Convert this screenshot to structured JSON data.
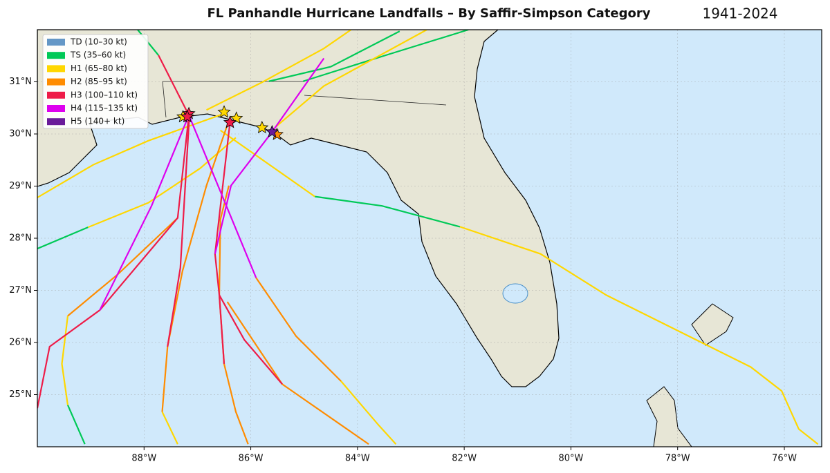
{
  "chart_data": {
    "type": "map",
    "title": "FL Panhandle Hurricane Landfalls – By Saffir-Simpson Category",
    "subtitle": "1941-2024",
    "xlim": [
      -90,
      -75.3
    ],
    "ylim": [
      24,
      32
    ],
    "xticks": [
      {
        "value": -88,
        "label": "88°W"
      },
      {
        "value": -86,
        "label": "86°W"
      },
      {
        "value": -84,
        "label": "84°W"
      },
      {
        "value": -82,
        "label": "82°W"
      },
      {
        "value": -80,
        "label": "80°W"
      },
      {
        "value": -78,
        "label": "78°W"
      },
      {
        "value": -76,
        "label": "76°W"
      }
    ],
    "yticks": [
      {
        "value": 25,
        "label": "25°N"
      },
      {
        "value": 26,
        "label": "26°N"
      },
      {
        "value": 27,
        "label": "27°N"
      },
      {
        "value": 28,
        "label": "28°N"
      },
      {
        "value": 29,
        "label": "29°N"
      },
      {
        "value": 30,
        "label": "30°N"
      },
      {
        "value": 31,
        "label": "31°N"
      }
    ],
    "grid": true,
    "legend": "upper left",
    "series": [
      {
        "name": "TD (10–30 kt)",
        "color": "#6497c6",
        "tracks": [],
        "landfalls": {
          "x": [],
          "y": []
        }
      },
      {
        "name": "TS (35–60 kt)",
        "color": "#00c957",
        "tracks": [
          {
            "x": [
              -90,
              -89.05
            ],
            "y": [
              27.8,
              28.21
            ]
          },
          {
            "x": [
              -84.8,
              -83.54,
              -82.08
            ],
            "y": [
              28.8,
              28.62,
              28.22
            ]
          },
          {
            "x": [
              -85.66,
              -84.5,
              -83.21
            ],
            "y": [
              31.01,
              31.29,
              31.97
            ]
          },
          {
            "x": [
              -85.02,
              -83.47,
              -81.92
            ],
            "y": [
              31.01,
              31.51,
              32
            ]
          },
          {
            "x": [
              -89.43,
              -89.11
            ],
            "y": [
              24.8,
              24.05
            ]
          },
          {
            "x": [
              -88.12,
              -87.73
            ],
            "y": [
              32,
              31.51
            ]
          }
        ],
        "landfalls": {
          "x": [],
          "y": []
        }
      },
      {
        "name": "H1 (65–80 kt)",
        "color": "#ffd700",
        "tracks": [
          {
            "x": [
              -90,
              -88.95,
              -87.92,
              -86.5
            ],
            "y": [
              28.78,
              29.41,
              29.87,
              30.39
            ]
          },
          {
            "x": [
              -89.05,
              -87.92,
              -86.95,
              -86.28
            ],
            "y": [
              28.21,
              28.68,
              29.34,
              29.93
            ]
          },
          {
            "x": [
              -82.08,
              -80.57,
              -79.34,
              -76.63,
              -76.05,
              -75.73,
              -75.37
            ],
            "y": [
              28.22,
              27.7,
              26.91,
              25.53,
              25.07,
              24.34,
              24.05
            ]
          },
          {
            "x": [
              -84.8,
              -86.57
            ],
            "y": [
              28.8,
              30.07
            ]
          },
          {
            "x": [
              -86.83,
              -85.79,
              -84.63,
              -84.12
            ],
            "y": [
              30.46,
              30.99,
              31.64,
              32
            ]
          },
          {
            "x": [
              -85.54,
              -84.63,
              -82.7
            ],
            "y": [
              30.13,
              30.92,
              32
            ]
          },
          {
            "x": [
              -89.43,
              -89.54,
              -89.43
            ],
            "y": [
              26.51,
              25.59,
              24.8
            ]
          },
          {
            "x": [
              -87.66,
              -87.37
            ],
            "y": [
              24.67,
              24.05
            ]
          },
          {
            "x": [
              -84.31,
              -83.6,
              -83.28
            ],
            "y": [
              25.26,
              24.41,
              24.05
            ]
          }
        ],
        "landfalls": {
          "x": [
            -87.27,
            -86.5,
            -86.27,
            -85.79
          ],
          "y": [
            30.33,
            30.42,
            30.3,
            30.12
          ]
        }
      },
      {
        "name": "H2 (85–95 kt)",
        "color": "#ff8c00",
        "tracks": [
          {
            "x": [
              -89.43,
              -88.5,
              -87.37
            ],
            "y": [
              26.51,
              27.3,
              28.39
            ]
          },
          {
            "x": [
              -87.66,
              -87.56,
              -87.28,
              -86.83,
              -86.41
            ],
            "y": [
              24.67,
              25.92,
              27.37,
              29.01,
              30.26
            ]
          },
          {
            "x": [
              -86.05,
              -86.28,
              -86.5,
              -86.59,
              -86.57,
              -86.41
            ],
            "y": [
              24.05,
              24.67,
              25.59,
              26.91,
              28.36,
              29.01
            ]
          },
          {
            "x": [
              -83.79,
              -85.41,
              -86.44
            ],
            "y": [
              24.05,
              25.2,
              26.78
            ]
          },
          {
            "x": [
              -84.31,
              -85.15,
              -85.9
            ],
            "y": [
              25.26,
              26.12,
              27.24
            ]
          }
        ],
        "landfalls": {
          "x": [
            -85.51
          ],
          "y": [
            29.99
          ]
        }
      },
      {
        "name": "H3 (100–110 kt)",
        "color": "#ee1c48",
        "tracks": [
          {
            "x": [
              -90,
              -89.77,
              -88.83,
              -87.37,
              -87.16
            ],
            "y": [
              24.74,
              25.92,
              26.62,
              28.39,
              30.36
            ]
          },
          {
            "x": [
              -87.56,
              -87.32,
              -87.15
            ],
            "y": [
              25.92,
              27.43,
              30.36
            ]
          },
          {
            "x": [
              -87.73,
              -87.16
            ],
            "y": [
              31.51,
              30.36
            ]
          },
          {
            "x": [
              -86.5,
              -86.59,
              -86.67,
              -86.39
            ],
            "y": [
              25.59,
              26.91,
              27.7,
              30.22
            ]
          },
          {
            "x": [
              -85.41,
              -86.12,
              -86.59
            ],
            "y": [
              25.2,
              26.05,
              26.91
            ]
          }
        ],
        "landfalls": {
          "x": [
            -87.16,
            -87.19,
            -86.39
          ],
          "y": [
            30.39,
            30.33,
            30.22
          ]
        }
      },
      {
        "name": "H4 (115–135 kt)",
        "color": "#dd00ee",
        "tracks": [
          {
            "x": [
              -88.83,
              -87.86,
              -87.16
            ],
            "y": [
              26.62,
              28.62,
              30.36
            ]
          },
          {
            "x": [
              -85.9,
              -87.16
            ],
            "y": [
              27.24,
              30.36
            ]
          },
          {
            "x": [
              -86.67,
              -86.37,
              -85.6,
              -84.63
            ],
            "y": [
              27.7,
              29.01,
              30.04,
              31.45
            ]
          }
        ],
        "landfalls": {
          "x": [],
          "y": []
        }
      },
      {
        "name": "H5 (140+ kt)",
        "color": "#6a1b9a",
        "tracks": [],
        "landfalls": {
          "x": [
            -85.6
          ],
          "y": [
            30.04
          ]
        }
      }
    ]
  }
}
